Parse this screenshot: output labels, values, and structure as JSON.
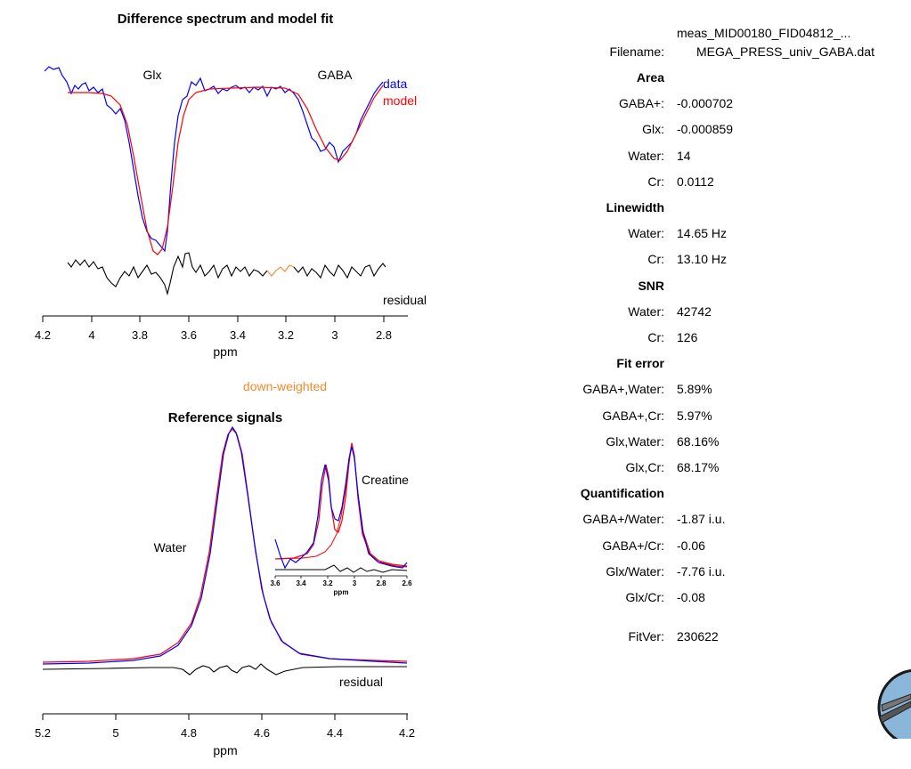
{
  "diff_plot": {
    "title": "Difference spectrum and model fit",
    "xlabel": "ppm",
    "peak_labels": [
      "Glx",
      "GABA"
    ],
    "legend": [
      "data",
      "model"
    ],
    "residual_label": "residual",
    "down_weighted_label": "down-weighted",
    "xticks": [
      "4.2",
      "4",
      "3.8",
      "3.6",
      "3.4",
      "3.2",
      "3",
      "2.8"
    ]
  },
  "ref_plot": {
    "title": "Reference signals",
    "xlabel": "ppm",
    "water_label": "Water",
    "residual_label": "residual",
    "xticks": [
      "5.2",
      "5",
      "4.8",
      "4.6",
      "4.4",
      "4.2"
    ],
    "inset": {
      "label": "Creatine",
      "xlabel": "ppm",
      "xticks": [
        "3.6",
        "3.4",
        "3.2",
        "3",
        "2.8",
        "2.6"
      ]
    }
  },
  "results": {
    "file": {
      "line1": "meas_MID00180_FID04812_...",
      "label": "Filename:",
      "line2": "MEGA_PRESS_univ_GABA.dat"
    },
    "rows": [
      {
        "k": "Area",
        "v": "",
        "hdr": true
      },
      {
        "k": "GABA+:",
        "v": "-0.000702"
      },
      {
        "k": "Glx:",
        "v": "-0.000859"
      },
      {
        "k": "Water:",
        "v": "14"
      },
      {
        "k": "Cr:",
        "v": "0.0112"
      },
      {
        "k": "Linewidth",
        "v": "",
        "hdr": true
      },
      {
        "k": "Water:",
        "v": "14.65 Hz"
      },
      {
        "k": "Cr:",
        "v": "13.10 Hz"
      },
      {
        "k": "SNR",
        "v": "",
        "hdr": true
      },
      {
        "k": "Water:",
        "v": "42742"
      },
      {
        "k": "Cr:",
        "v": "126"
      },
      {
        "k": "Fit error",
        "v": "",
        "hdr": true
      },
      {
        "k": "GABA+,Water:",
        "v": "5.89%"
      },
      {
        "k": "GABA+,Cr:",
        "v": "5.97%"
      },
      {
        "k": "Glx,Water:",
        "v": "68.16%"
      },
      {
        "k": "Glx,Cr:",
        "v": "68.17%"
      },
      {
        "k": "Quantification",
        "v": "",
        "hdr": true
      },
      {
        "k": "GABA+/Water:",
        "v": "-1.87 i.u."
      },
      {
        "k": "GABA+/Cr:",
        "v": "-0.06"
      },
      {
        "k": "Glx/Water:",
        "v": "-7.76 i.u."
      },
      {
        "k": "Glx/Cr:",
        "v": "-0.08"
      }
    ],
    "fitver": {
      "k": "FitVer:",
      "v": "230622"
    }
  },
  "colors": {
    "data": "#0000ff",
    "model": "#ff0000",
    "residual": "#000000",
    "down_weighted": "#f58a2a"
  },
  "chart_data": [
    {
      "type": "line",
      "title": "Difference spectrum and model fit",
      "xlabel": "ppm",
      "xlim": [
        4.2,
        2.7
      ],
      "x_reversed": true,
      "series": [
        {
          "name": "data",
          "x": [
            4.1,
            4.05,
            4.0,
            3.95,
            3.9,
            3.85,
            3.8,
            3.75,
            3.72,
            3.7,
            3.68,
            3.65,
            3.6,
            3.55,
            3.5,
            3.4,
            3.3,
            3.2,
            3.1,
            3.05,
            3.0,
            2.95,
            2.9,
            2.85
          ],
          "y": [
            0.95,
            0.88,
            0.92,
            0.8,
            0.7,
            0.62,
            0.2,
            -0.35,
            -0.4,
            -0.45,
            0.1,
            0.55,
            0.8,
            0.88,
            0.85,
            0.92,
            0.88,
            0.75,
            0.35,
            0.25,
            0.15,
            0.3,
            0.55,
            0.85
          ]
        },
        {
          "name": "model",
          "x": [
            4.1,
            4.0,
            3.9,
            3.85,
            3.8,
            3.75,
            3.72,
            3.7,
            3.65,
            3.6,
            3.55,
            3.5,
            3.4,
            3.3,
            3.2,
            3.1,
            3.05,
            3.0,
            2.95,
            2.9,
            2.85
          ],
          "y": [
            0.82,
            0.82,
            0.8,
            0.65,
            0.1,
            -0.4,
            -0.5,
            -0.35,
            0.3,
            0.72,
            0.82,
            0.85,
            0.86,
            0.85,
            0.75,
            0.4,
            0.25,
            0.2,
            0.3,
            0.55,
            0.85
          ]
        },
        {
          "name": "residual",
          "x": [
            4.1,
            4.0,
            3.9,
            3.8,
            3.75,
            3.7,
            3.65,
            3.6,
            3.5,
            3.4,
            3.3,
            3.2,
            3.1,
            3.0,
            2.9,
            2.82
          ],
          "y": [
            -0.95,
            -0.97,
            -1.0,
            -0.98,
            -1.03,
            -1.05,
            -0.92,
            -0.96,
            -0.97,
            -0.98,
            -0.98,
            -0.99,
            -0.98,
            -0.99,
            -0.99,
            -0.99
          ]
        }
      ]
    },
    {
      "type": "line",
      "title": "Reference signals",
      "xlabel": "ppm",
      "xlim": [
        5.2,
        4.2
      ],
      "x_reversed": true,
      "series": [
        {
          "name": "Water data",
          "x": [
            5.2,
            5.0,
            4.9,
            4.8,
            4.75,
            4.7,
            4.68,
            4.65,
            4.6,
            4.55,
            4.5,
            4.4,
            4.2
          ],
          "y": [
            0.01,
            0.03,
            0.08,
            0.25,
            0.55,
            0.95,
            1.0,
            0.9,
            0.45,
            0.18,
            0.08,
            0.03,
            0.01
          ]
        },
        {
          "name": "Water model",
          "x": [
            5.2,
            5.0,
            4.9,
            4.8,
            4.75,
            4.7,
            4.68,
            4.65,
            4.6,
            4.55,
            4.5,
            4.4,
            4.2
          ],
          "y": [
            0.01,
            0.03,
            0.09,
            0.27,
            0.56,
            0.94,
            0.99,
            0.89,
            0.44,
            0.17,
            0.08,
            0.03,
            0.01
          ]
        }
      ]
    },
    {
      "type": "line",
      "title": "",
      "xlabel": "ppm",
      "xlim": [
        3.6,
        2.6
      ],
      "x_reversed": true,
      "series": [
        {
          "name": "Creatine data",
          "x": [
            3.6,
            3.5,
            3.4,
            3.3,
            3.2,
            3.15,
            3.1,
            3.05,
            3.0,
            2.95,
            2.9,
            2.8,
            2.7,
            2.6
          ],
          "y": [
            0.1,
            -0.02,
            0.05,
            0.2,
            0.75,
            0.45,
            0.25,
            0.6,
            0.95,
            0.45,
            0.15,
            0.05,
            0.03,
            0.08
          ]
        },
        {
          "name": "Creatine model",
          "x": [
            3.6,
            3.5,
            3.4,
            3.3,
            3.2,
            3.15,
            3.1,
            3.05,
            3.0,
            2.95,
            2.9,
            2.8,
            2.7,
            2.6
          ],
          "y": [
            0.02,
            0.03,
            0.06,
            0.2,
            0.78,
            0.5,
            0.32,
            0.65,
            1.0,
            0.48,
            0.18,
            0.06,
            0.03,
            0.02
          ]
        }
      ]
    }
  ]
}
